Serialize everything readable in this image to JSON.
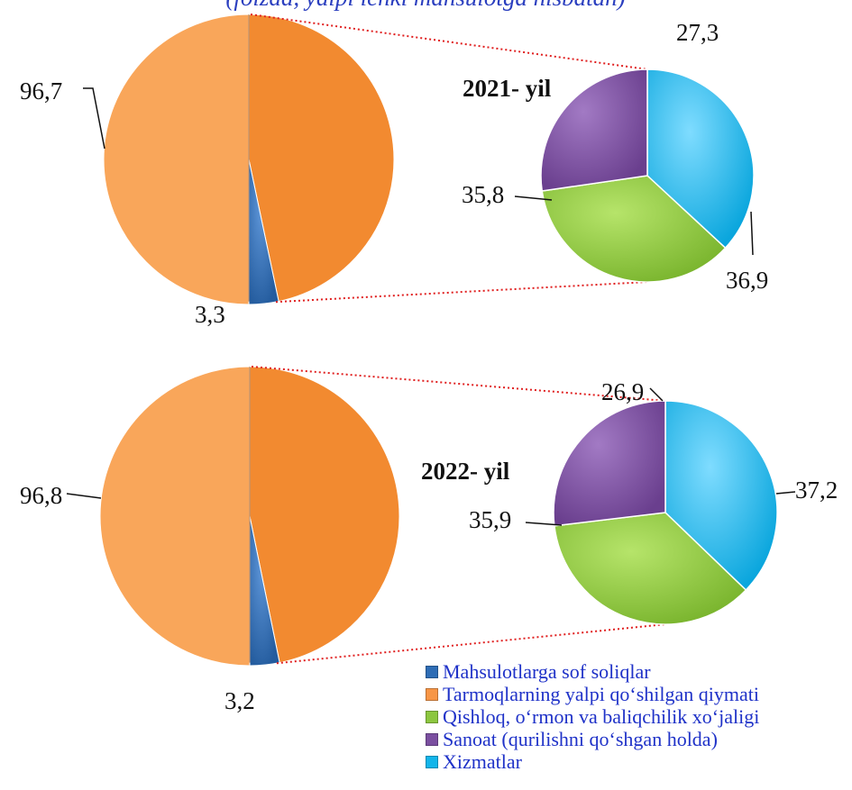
{
  "subtitle": "(foizda, yalpi ichki mahsulotga nisbatan)",
  "colors": {
    "net_taxes": "#2e6db5",
    "gross_value_added": "#f79646",
    "agriculture": "#8cc63f",
    "industry": "#7b4fa0",
    "services": "#13b5ea"
  },
  "chart_data": [
    {
      "type": "pie",
      "title": "2021- yil",
      "slices": [
        {
          "label": "Mahsulotlarga sof soliqlar",
          "value": 3.3,
          "display": "3,3"
        },
        {
          "label": "Tarmoqlarning yalpi qo‘shilgan qiymati",
          "value": 96.7,
          "display": "96,7"
        }
      ],
      "breakdown": [
        {
          "label": "Qishloq, o‘rmon va baliqchilik xo‘jaligi",
          "value": 35.8,
          "display": "35,8"
        },
        {
          "label": "Sanoat (qurilishni qo‘shgan holda)",
          "value": 27.3,
          "display": "27,3"
        },
        {
          "label": "Xizmatlar",
          "value": 36.9,
          "display": "36,9"
        }
      ]
    },
    {
      "type": "pie",
      "title": "2022- yil",
      "slices": [
        {
          "label": "Mahsulotlarga sof soliqlar",
          "value": 3.2,
          "display": "3,2"
        },
        {
          "label": "Tarmoqlarning yalpi qo‘shilgan qiymati",
          "value": 96.8,
          "display": "96,8"
        }
      ],
      "breakdown": [
        {
          "label": "Qishloq, o‘rmon va baliqchilik xo‘jaligi",
          "value": 35.9,
          "display": "35,9"
        },
        {
          "label": "Sanoat (qurilishni qo‘shgan holda)",
          "value": 26.9,
          "display": "26,9"
        },
        {
          "label": "Xizmatlar",
          "value": 37.2,
          "display": "37,2"
        }
      ]
    }
  ],
  "legend": {
    "placement": "bottom-right",
    "items": [
      {
        "label": "Mahsulotlarga sof soliqlar",
        "color": "#2e6db5"
      },
      {
        "label": "Tarmoqlarning yalpi qo‘shilgan qiymati",
        "color": "#f79646"
      },
      {
        "label": "Qishloq, o‘rmon va baliqchilik xo‘jaligi",
        "color": "#8cc63f"
      },
      {
        "label": "Sanoat (qurilishni qo‘shgan holda)",
        "color": "#7b4fa0"
      },
      {
        "label": "Xizmatlar",
        "color": "#13b5ea"
      }
    ]
  }
}
